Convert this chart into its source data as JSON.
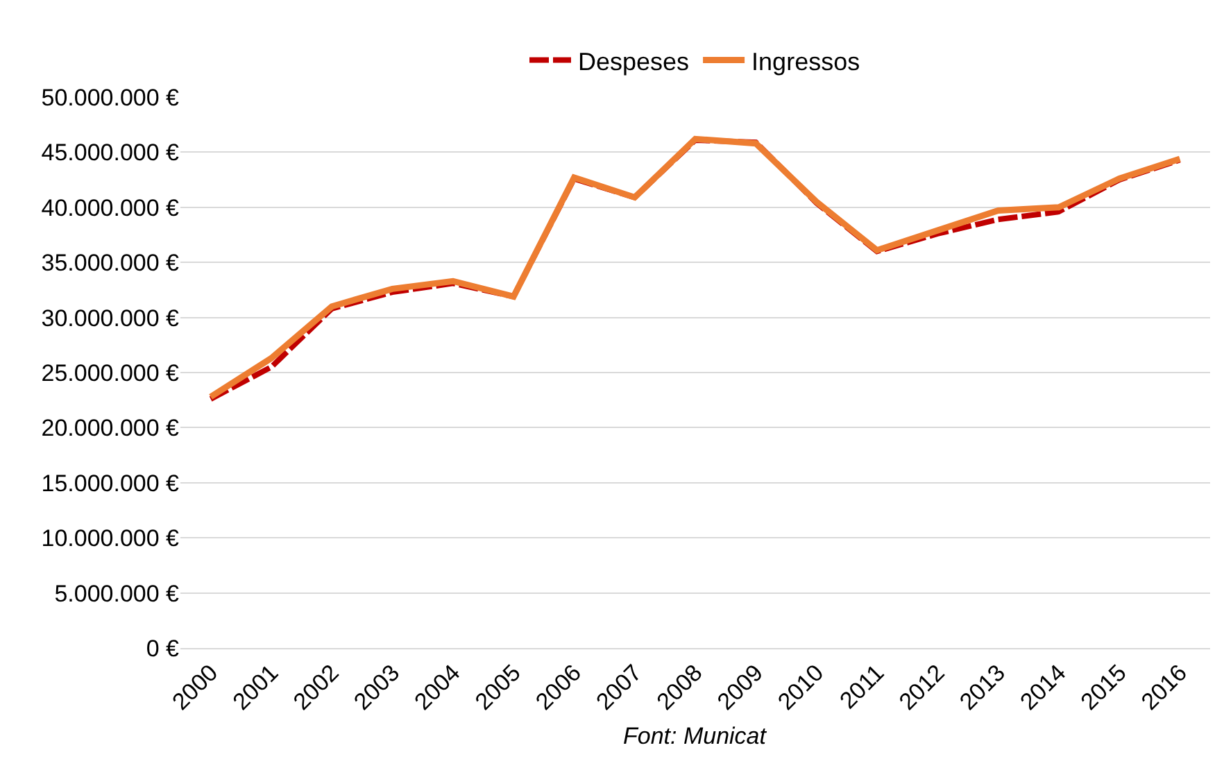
{
  "chart_data": {
    "type": "line",
    "categories": [
      "2000",
      "2001",
      "2002",
      "2003",
      "2004",
      "2005",
      "2006",
      "2007",
      "2008",
      "2009",
      "2010",
      "2011",
      "2012",
      "2013",
      "2014",
      "2015",
      "2016"
    ],
    "series": [
      {
        "name": "Despeses",
        "color": "#c00000",
        "line_style": "dashed",
        "values": [
          22600000,
          25500000,
          30800000,
          32300000,
          33100000,
          31900000,
          42600000,
          40900000,
          46100000,
          45900000,
          40400000,
          36000000,
          37600000,
          38900000,
          39600000,
          42500000,
          44300000
        ]
      },
      {
        "name": "Ingressos",
        "color": "#ed7d31",
        "line_style": "solid",
        "values": [
          22800000,
          26300000,
          31000000,
          32600000,
          33300000,
          31900000,
          42700000,
          40900000,
          46200000,
          45800000,
          40500000,
          36100000,
          37900000,
          39700000,
          40000000,
          42600000,
          44400000
        ]
      }
    ],
    "ylim": [
      0,
      50000000
    ],
    "yticks": [
      {
        "value": 0,
        "label": "0 €"
      },
      {
        "value": 5000000,
        "label": "5.000.000 €"
      },
      {
        "value": 10000000,
        "label": "10.000.000 €"
      },
      {
        "value": 15000000,
        "label": "15.000.000 €"
      },
      {
        "value": 20000000,
        "label": "20.000.000 €"
      },
      {
        "value": 25000000,
        "label": "25.000.000 €"
      },
      {
        "value": 30000000,
        "label": "30.000.000 €"
      },
      {
        "value": 35000000,
        "label": "35.000.000 €"
      },
      {
        "value": 40000000,
        "label": "40.000.000 €"
      },
      {
        "value": 45000000,
        "label": "45.000.000 €"
      },
      {
        "value": 50000000,
        "label": "50.000.000 €"
      }
    ],
    "grid": "y",
    "legend": "top",
    "marker": "none",
    "annotations": [
      "Font: Municat"
    ]
  }
}
